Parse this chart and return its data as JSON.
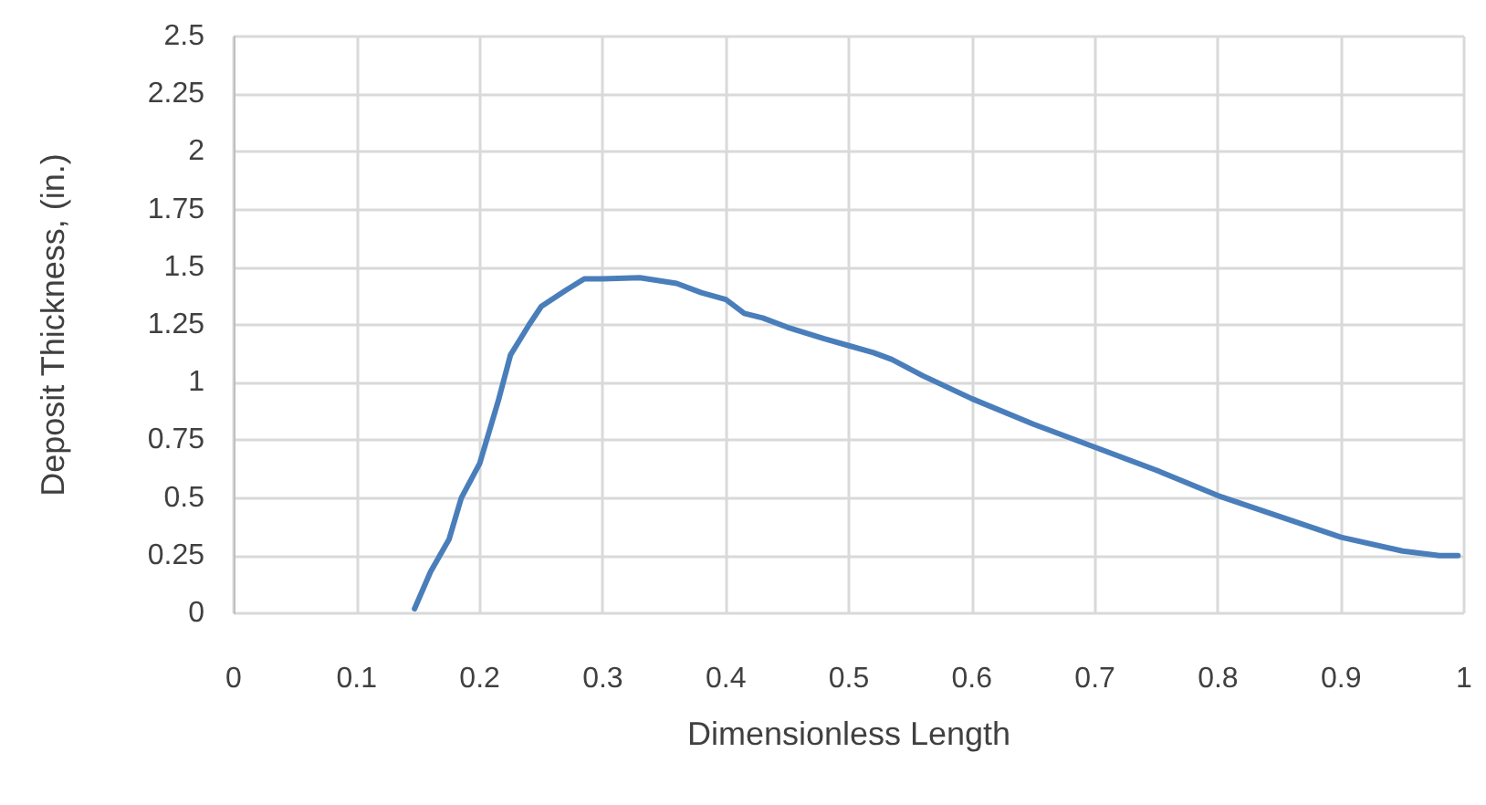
{
  "chart_data": {
    "type": "line",
    "xlabel": "Dimensionless Length",
    "ylabel": "Deposit Thickness, (in.)",
    "x": [
      0.147,
      0.16,
      0.175,
      0.185,
      0.2,
      0.215,
      0.225,
      0.24,
      0.25,
      0.27,
      0.285,
      0.3,
      0.33,
      0.36,
      0.38,
      0.4,
      0.415,
      0.43,
      0.45,
      0.48,
      0.5,
      0.52,
      0.535,
      0.56,
      0.6,
      0.65,
      0.7,
      0.75,
      0.8,
      0.85,
      0.9,
      0.95,
      0.98,
      0.995
    ],
    "series": [
      {
        "color": "#4a7ebb",
        "values": [
          0.02,
          0.18,
          0.32,
          0.5,
          0.65,
          0.92,
          1.12,
          1.25,
          1.33,
          1.4,
          1.45,
          1.45,
          1.455,
          1.43,
          1.39,
          1.36,
          1.3,
          1.28,
          1.24,
          1.19,
          1.16,
          1.13,
          1.1,
          1.03,
          0.93,
          0.82,
          0.72,
          0.62,
          0.51,
          0.42,
          0.33,
          0.27,
          0.25,
          0.25
        ]
      }
    ],
    "xlim": [
      0,
      1
    ],
    "xticks": [
      0,
      0.1,
      0.2,
      0.3,
      0.4,
      0.5,
      0.6,
      0.7,
      0.8,
      0.9,
      1
    ],
    "ylim": [
      0,
      2.5
    ],
    "yticks": [
      0,
      0.25,
      0.5,
      0.75,
      1,
      1.25,
      1.5,
      1.75,
      2,
      2.25,
      2.5
    ],
    "grid": true,
    "marker": "none",
    "line_style": "solid"
  }
}
